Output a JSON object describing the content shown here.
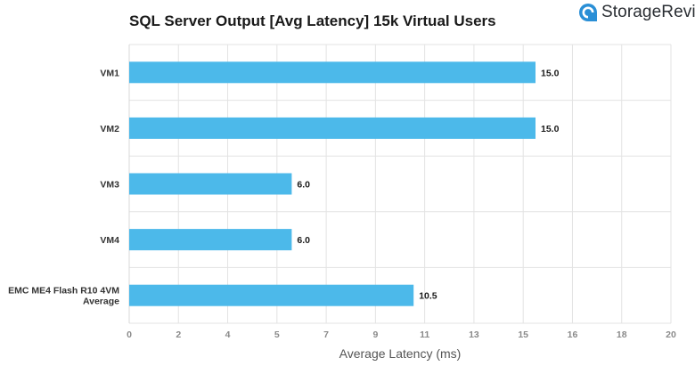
{
  "brand": {
    "name": "StorageRevie",
    "icon": "storagereview-logo-icon",
    "color": "#2a8fd6"
  },
  "chart_data": {
    "type": "bar",
    "orientation": "horizontal",
    "title": "SQL Server Output [Avg Latency] 15k Virtual Users",
    "xlabel": "Average Latency (ms)",
    "ylabel": "",
    "xlim": [
      0,
      20
    ],
    "ticks": [
      "0",
      "2",
      "4",
      "5",
      "7",
      "9",
      "11",
      "13",
      "15",
      "16",
      "18",
      "20"
    ],
    "categories": [
      "VM1",
      "VM2",
      "VM3",
      "VM4",
      "EMC ME4 Flash R10 4VM Average"
    ],
    "category_lines": [
      [
        "VM1"
      ],
      [
        "VM2"
      ],
      [
        "VM3"
      ],
      [
        "VM4"
      ],
      [
        "EMC ME4 Flash R10 4VM",
        "Average"
      ]
    ],
    "values": [
      15.0,
      15.0,
      6.0,
      6.0,
      10.5
    ],
    "value_labels": [
      "15.0",
      "15.0",
      "6.0",
      "6.0",
      "10.5"
    ],
    "bar_color": "#4cb9ea",
    "grid": true,
    "legend": "none"
  }
}
